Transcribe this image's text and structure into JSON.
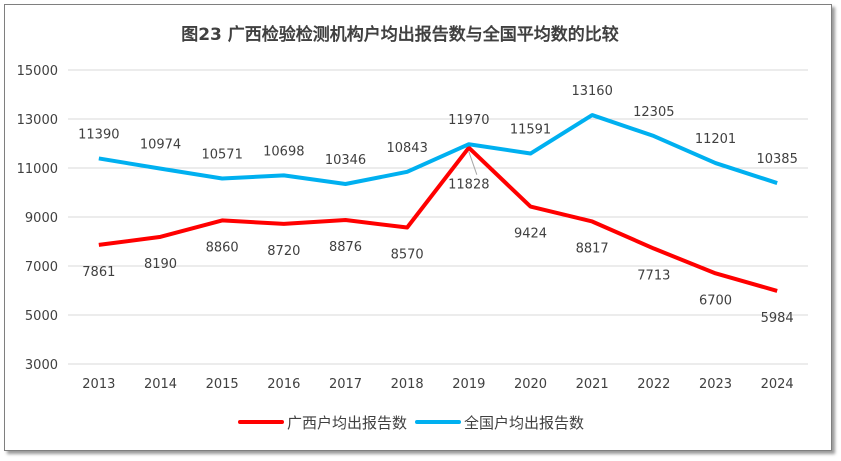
{
  "chart_data": {
    "type": "line",
    "title": "图23 广西检验检测机构户均出报告数与全国平均数的比较",
    "categories": [
      "2013",
      "2014",
      "2015",
      "2016",
      "2017",
      "2018",
      "2019",
      "2020",
      "2021",
      "2022",
      "2023",
      "2024"
    ],
    "ylim": [
      3000,
      15000
    ],
    "yticks": [
      3000,
      5000,
      7000,
      9000,
      11000,
      13000,
      15000
    ],
    "grid": true,
    "legend_position": "bottom",
    "series": [
      {
        "name": "广西户均出报告数",
        "color": "#ff0000",
        "values": [
          7861,
          8190,
          8860,
          8720,
          8876,
          8570,
          11828,
          9424,
          8817,
          7713,
          6700,
          5984
        ]
      },
      {
        "name": "全国户均出报告数",
        "color": "#00b0f0",
        "values": [
          11390,
          10974,
          10571,
          10698,
          10346,
          10843,
          11970,
          11591,
          13160,
          12305,
          11201,
          10385
        ]
      }
    ]
  }
}
